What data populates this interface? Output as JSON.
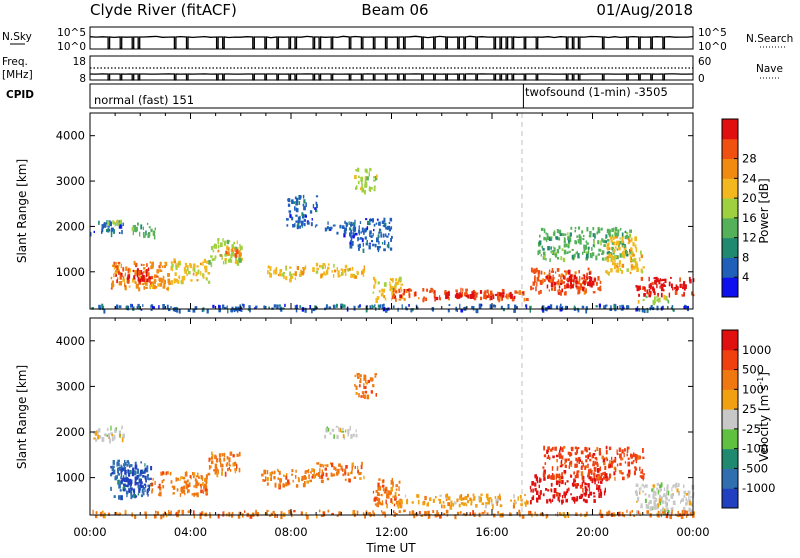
{
  "header": {
    "station": "Clyde River (fitACF)",
    "beam": "Beam 06",
    "date": "01/Aug/2018"
  },
  "noise_panel": {
    "left_label": "N.Sky",
    "right_label": "N.Search",
    "left_ticks": [
      "10^5",
      "10^0"
    ],
    "right_ticks": [
      "10^5",
      "10^0"
    ]
  },
  "freq_panel": {
    "left_label_line1": "Freq.",
    "left_label_line2": "[MHz]",
    "right_label": "Nave",
    "left_ticks": [
      "18",
      "8"
    ],
    "right_ticks": [
      "60",
      "0"
    ]
  },
  "cpid_panel": {
    "label": "CPID",
    "modes": [
      {
        "name": "normal (fast) 151",
        "start_hour": 0
      },
      {
        "name": "twofsound (1-min) -3505",
        "start_hour": 17.25
      }
    ]
  },
  "x_axis": {
    "label": "Time UT",
    "ticks": [
      "00:00",
      "04:00",
      "08:00",
      "12:00",
      "16:00",
      "20:00",
      "00:00"
    ],
    "range_hours": [
      0,
      24
    ]
  },
  "power_panel": {
    "ylabel": "Slant Range [km]",
    "yticks": [
      "1000",
      "2000",
      "3000",
      "4000"
    ],
    "colorbar_label": "Power [dB]",
    "colorbar_ticks": [
      "4",
      "8",
      "12",
      "16",
      "20",
      "24",
      "28"
    ],
    "colors": [
      "#1010ee",
      "#2060b8",
      "#1f8a70",
      "#55b05a",
      "#9ed040",
      "#f2b81d",
      "#f08a10",
      "#f05010",
      "#e01010"
    ]
  },
  "velocity_panel": {
    "ylabel": "Slant Range [km]",
    "yticks": [
      "1000",
      "2000",
      "3000",
      "4000"
    ],
    "colorbar_label": "Velocity [m s^-1]",
    "colorbar_ticks": [
      "1000",
      "500",
      "100",
      "25",
      "-25",
      "-100",
      "-500",
      "-1000"
    ],
    "colors": [
      "#2040c0",
      "#2f6fb0",
      "#1f8a70",
      "#60c040",
      "#c8c8c8",
      "#f0a010",
      "#f07810",
      "#f04010",
      "#e01010"
    ]
  },
  "chart_data": {
    "type": "heatmap",
    "x_unit": "hours UT",
    "y_unit": "slant range km",
    "yrange": [
      180,
      4500
    ],
    "power_regions": [
      {
        "x": [
          0.0,
          1.3
        ],
        "y": [
          1850,
          2150
        ],
        "level": 1
      },
      {
        "x": [
          0.6,
          1.2
        ],
        "y": [
          2080,
          2150
        ],
        "level": 4
      },
      {
        "x": [
          0.8,
          3.2
        ],
        "y": [
          650,
          1250
        ],
        "level": 6
      },
      {
        "x": [
          1.0,
          2.4
        ],
        "y": [
          800,
          1100
        ],
        "level": 8
      },
      {
        "x": [
          1.6,
          2.6
        ],
        "y": [
          1800,
          2100
        ],
        "level": 3
      },
      {
        "x": [
          3.2,
          4.7
        ],
        "y": [
          800,
          1300
        ],
        "level": 5
      },
      {
        "x": [
          4.7,
          6.0
        ],
        "y": [
          1200,
          1750
        ],
        "level": 4
      },
      {
        "x": [
          5.0,
          6.0
        ],
        "y": [
          1350,
          1550
        ],
        "level": 6
      },
      {
        "x": [
          7.0,
          8.6
        ],
        "y": [
          850,
          1150
        ],
        "level": 5
      },
      {
        "x": [
          8.8,
          10.9
        ],
        "y": [
          900,
          1200
        ],
        "level": 5
      },
      {
        "x": [
          9.3,
          10.6
        ],
        "y": [
          1850,
          2150
        ],
        "level": 1
      },
      {
        "x": [
          7.8,
          9.0
        ],
        "y": [
          2000,
          2700
        ],
        "level": 1
      },
      {
        "x": [
          10.3,
          12.0
        ],
        "y": [
          1500,
          2200
        ],
        "level": 1
      },
      {
        "x": [
          10.5,
          11.4
        ],
        "y": [
          2800,
          3300
        ],
        "level": 4
      },
      {
        "x": [
          11.2,
          12.4
        ],
        "y": [
          400,
          900
        ],
        "level": 5
      },
      {
        "x": [
          12.0,
          17.4
        ],
        "y": [
          420,
          650
        ],
        "level": 7
      },
      {
        "x": [
          14.0,
          17.2
        ],
        "y": [
          450,
          580
        ],
        "level": 8
      },
      {
        "x": [
          17.5,
          20.3
        ],
        "y": [
          550,
          1100
        ],
        "level": 7
      },
      {
        "x": [
          18.0,
          20.0
        ],
        "y": [
          700,
          950
        ],
        "level": 8
      },
      {
        "x": [
          17.8,
          21.5
        ],
        "y": [
          1300,
          2000
        ],
        "level": 3
      },
      {
        "x": [
          20.5,
          22.0
        ],
        "y": [
          1000,
          1800
        ],
        "level": 5
      },
      {
        "x": [
          21.7,
          24.0
        ],
        "y": [
          500,
          900
        ],
        "level": 8
      },
      {
        "x": [
          21.8,
          23.0
        ],
        "y": [
          350,
          500
        ],
        "level": 4
      },
      {
        "x": [
          0.0,
          24.0
        ],
        "y": [
          180,
          300
        ],
        "level": 1
      }
    ],
    "velocity_regions": [
      {
        "x": [
          0.0,
          1.3
        ],
        "y": [
          1850,
          2150
        ],
        "level": 4
      },
      {
        "x": [
          0.8,
          2.4
        ],
        "y": [
          600,
          1400
        ],
        "level": 1
      },
      {
        "x": [
          1.2,
          2.4
        ],
        "y": [
          700,
          1300
        ],
        "level": 0
      },
      {
        "x": [
          2.4,
          4.7
        ],
        "y": [
          650,
          1150
        ],
        "level": 6
      },
      {
        "x": [
          4.7,
          6.0
        ],
        "y": [
          1100,
          1600
        ],
        "level": 6
      },
      {
        "x": [
          6.8,
          8.8
        ],
        "y": [
          850,
          1200
        ],
        "level": 6
      },
      {
        "x": [
          8.8,
          10.9
        ],
        "y": [
          950,
          1350
        ],
        "level": 6
      },
      {
        "x": [
          9.3,
          10.6
        ],
        "y": [
          1900,
          2150
        ],
        "level": 4
      },
      {
        "x": [
          10.5,
          11.4
        ],
        "y": [
          2800,
          3300
        ],
        "level": 6
      },
      {
        "x": [
          11.2,
          12.4
        ],
        "y": [
          400,
          1000
        ],
        "level": 6
      },
      {
        "x": [
          12.0,
          17.4
        ],
        "y": [
          400,
          650
        ],
        "level": 5
      },
      {
        "x": [
          17.5,
          20.5
        ],
        "y": [
          500,
          1100
        ],
        "level": 8
      },
      {
        "x": [
          18.0,
          22.0
        ],
        "y": [
          1000,
          1700
        ],
        "level": 7
      },
      {
        "x": [
          21.7,
          24.0
        ],
        "y": [
          250,
          900
        ],
        "level": 4
      },
      {
        "x": [
          0.0,
          24.0
        ],
        "y": [
          180,
          300
        ],
        "level": 6
      }
    ]
  }
}
